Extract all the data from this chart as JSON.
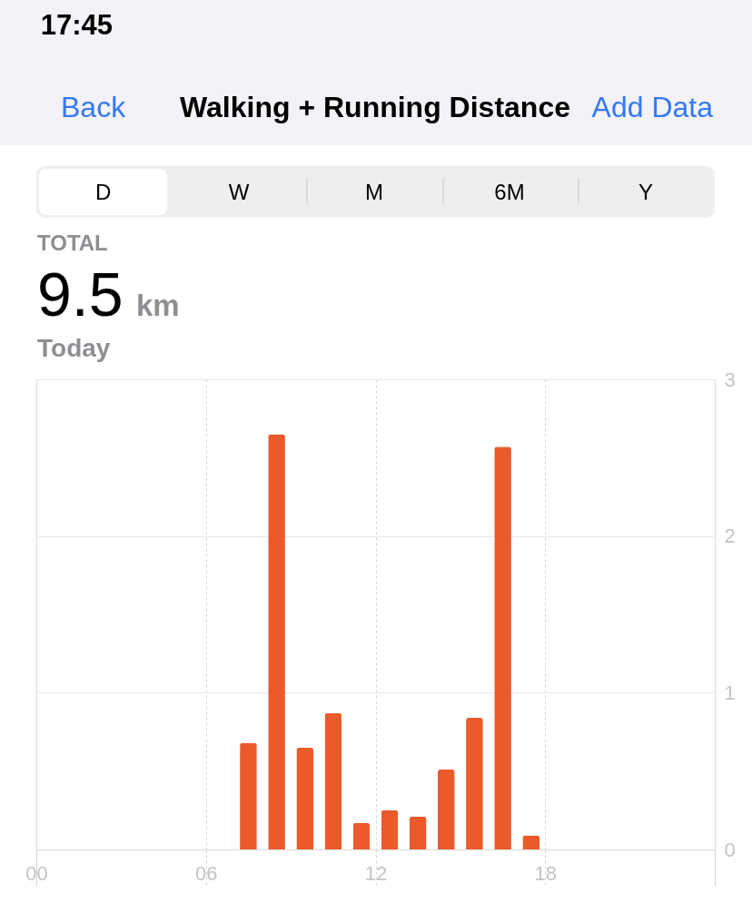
{
  "chart_data": {
    "type": "bar",
    "title": "Walking + Running Distance",
    "annotations": [
      "17:45",
      "Back",
      "Add Data",
      "D",
      "W",
      "M",
      "6M",
      "Y",
      "TOTAL",
      "9.5",
      "km",
      "Today"
    ],
    "x": [
      7.5,
      8.5,
      9.5,
      10.5,
      11.5,
      12.5,
      13.5,
      14.5,
      15.5,
      16.5,
      17.5
    ],
    "values": [
      0.68,
      2.65,
      0.65,
      0.87,
      0.17,
      0.25,
      0.21,
      0.51,
      0.84,
      2.57,
      0.09
    ],
    "color": "#eb5a2b",
    "xlim": [
      0,
      24
    ],
    "xticks": [
      {
        "value": 0,
        "label": "00"
      },
      {
        "value": 6,
        "label": "06"
      },
      {
        "value": 12,
        "label": "12"
      },
      {
        "value": 18,
        "label": "18"
      },
      {
        "value": 24,
        "label": null
      }
    ],
    "ylim": [
      0,
      3
    ],
    "yticks": [
      0,
      1,
      2,
      3
    ],
    "grid": true
  }
}
